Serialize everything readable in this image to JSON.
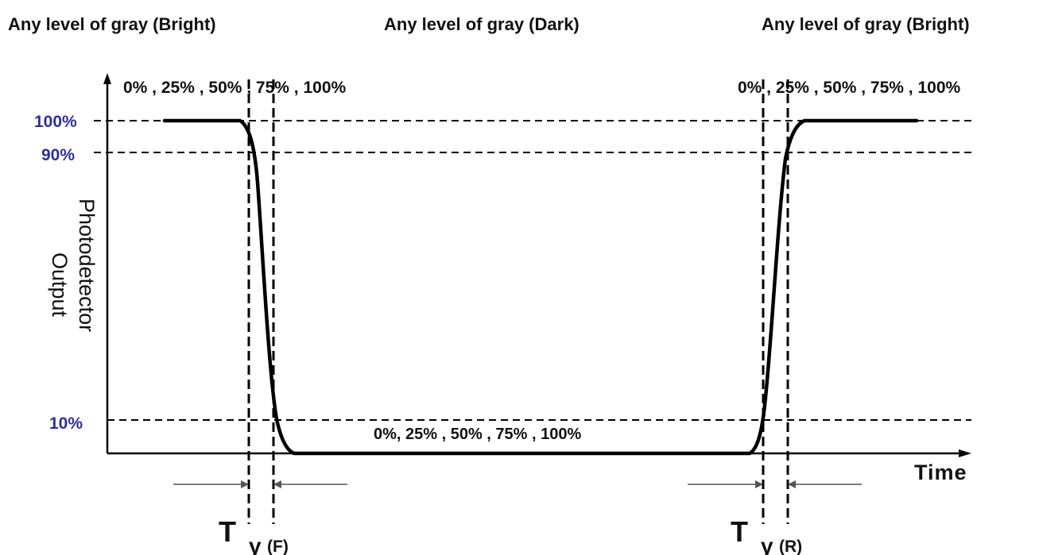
{
  "header": {
    "left": "Any level of gray (Bright)",
    "center": "Any level of gray (Dark)",
    "right": "Any level of gray (Bright)"
  },
  "levels": {
    "top_left": "0% , 25% , 50% , 75% , 100%",
    "top_right": "0% , 25% , 50% , 75% , 100%",
    "middle": "0%, 25% , 50% , 75% , 100%"
  },
  "y_axis": {
    "title_line1": "Photodetector",
    "title_line2": "Output",
    "tick_100": "100%",
    "tick_90": "90%",
    "tick_10": "10%"
  },
  "x_axis": {
    "title": "Time"
  },
  "markers": {
    "fall": {
      "main": "T",
      "greek": "γ",
      "sub": "(F)"
    },
    "rise": {
      "main": "T",
      "greek": "γ",
      "sub": "(R)"
    }
  },
  "colors": {
    "tick_labels": "#2e3192",
    "lines": "#000000"
  }
}
